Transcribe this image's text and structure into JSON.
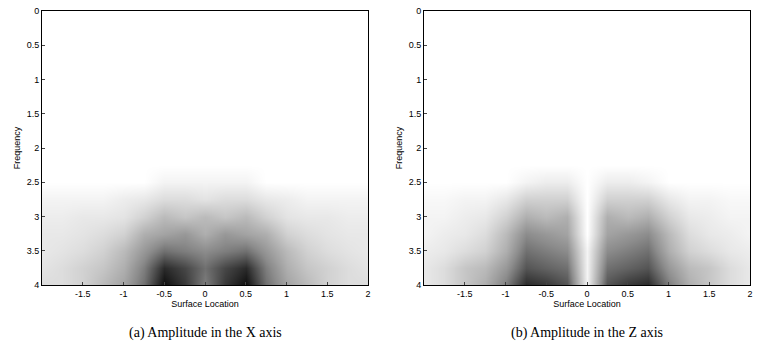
{
  "chart_data": [
    {
      "type": "heatmap",
      "title": "(a) Amplitude in the X axis",
      "x_label": "Surface Location",
      "y_label": "Frequency",
      "x": [
        -2,
        -1.75,
        -1.5,
        -1.25,
        -1,
        -0.75,
        -0.5,
        -0.25,
        0,
        0.25,
        0.5,
        0.75,
        1,
        1.25,
        1.5,
        1.75,
        2
      ],
      "y": [
        0,
        0.25,
        0.5,
        0.75,
        1,
        1.25,
        1.5,
        1.75,
        2,
        2.25,
        2.5,
        2.75,
        3,
        3.25,
        3.5,
        3.75,
        4
      ],
      "z": [
        [
          0,
          0,
          0,
          0,
          0,
          0,
          0,
          0,
          0,
          0,
          0,
          0,
          0,
          0,
          0,
          0,
          0
        ],
        [
          0,
          0,
          0,
          0,
          0,
          0,
          0,
          0,
          0,
          0,
          0,
          0,
          0,
          0,
          0,
          0,
          0
        ],
        [
          0,
          0,
          0,
          0,
          0,
          0,
          0,
          0,
          0,
          0,
          0,
          0,
          0,
          0,
          0,
          0,
          0
        ],
        [
          0,
          0,
          0,
          0,
          0,
          0,
          0,
          0,
          0,
          0,
          0,
          0,
          0,
          0,
          0,
          0,
          0
        ],
        [
          0,
          0,
          0,
          0,
          0,
          0,
          0,
          0,
          0,
          0,
          0,
          0,
          0,
          0,
          0,
          0,
          0
        ],
        [
          0,
          0,
          0,
          0,
          0,
          0,
          0,
          0,
          0,
          0,
          0,
          0,
          0,
          0,
          0,
          0,
          0
        ],
        [
          0,
          0,
          0,
          0,
          0,
          0,
          0,
          0,
          0,
          0,
          0,
          0,
          0,
          0,
          0,
          0,
          0
        ],
        [
          0,
          0,
          0,
          0,
          0,
          0,
          0,
          0,
          0,
          0,
          0,
          0,
          0,
          0,
          0,
          0,
          0
        ],
        [
          0,
          0,
          0,
          0,
          0,
          0,
          0,
          0,
          0,
          0,
          0,
          0,
          0,
          0,
          0,
          0,
          0
        ],
        [
          0,
          0,
          0,
          0,
          0,
          0,
          0,
          0,
          0,
          0,
          0,
          0,
          0,
          0,
          0,
          0,
          0
        ],
        [
          0,
          0,
          0,
          0,
          0,
          0,
          0.05,
          0.05,
          0.05,
          0.05,
          0.05,
          0,
          0,
          0,
          0,
          0,
          0
        ],
        [
          0.05,
          0.05,
          0.05,
          0.05,
          0.08,
          0.1,
          0.15,
          0.15,
          0.12,
          0.15,
          0.15,
          0.1,
          0.08,
          0.05,
          0.05,
          0.05,
          0.05
        ],
        [
          0.08,
          0.08,
          0.1,
          0.1,
          0.12,
          0.2,
          0.3,
          0.25,
          0.3,
          0.25,
          0.3,
          0.2,
          0.12,
          0.1,
          0.1,
          0.08,
          0.08
        ],
        [
          0.1,
          0.1,
          0.12,
          0.15,
          0.2,
          0.35,
          0.4,
          0.45,
          0.35,
          0.45,
          0.4,
          0.35,
          0.2,
          0.15,
          0.12,
          0.1,
          0.1
        ],
        [
          0.1,
          0.12,
          0.15,
          0.2,
          0.3,
          0.45,
          0.6,
          0.55,
          0.5,
          0.55,
          0.6,
          0.45,
          0.3,
          0.2,
          0.15,
          0.12,
          0.1
        ],
        [
          0.12,
          0.15,
          0.2,
          0.25,
          0.35,
          0.55,
          0.85,
          0.75,
          0.6,
          0.75,
          0.85,
          0.55,
          0.35,
          0.25,
          0.2,
          0.15,
          0.12
        ],
        [
          0.15,
          0.15,
          0.2,
          0.3,
          0.4,
          0.6,
          0.95,
          0.8,
          0.55,
          0.8,
          0.95,
          0.6,
          0.4,
          0.3,
          0.2,
          0.15,
          0.15
        ]
      ],
      "zlim": [
        0,
        1
      ],
      "xlim": [
        -2,
        2
      ],
      "ylim": [
        4,
        0
      ],
      "xticks": [
        -1.5,
        -1,
        -0.5,
        0,
        0.5,
        1,
        1.5,
        2
      ],
      "yticks": [
        0,
        0.5,
        1,
        1.5,
        2,
        2.5,
        3,
        3.5,
        4
      ]
    },
    {
      "type": "heatmap",
      "title": "(b) Amplitude in the Z axis",
      "x_label": "Surface Location",
      "y_label": "Frequency",
      "x": [
        -2,
        -1.75,
        -1.5,
        -1.25,
        -1,
        -0.75,
        -0.5,
        -0.25,
        0,
        0.25,
        0.5,
        0.75,
        1,
        1.25,
        1.5,
        1.75,
        2
      ],
      "y": [
        0,
        0.25,
        0.5,
        0.75,
        1,
        1.25,
        1.5,
        1.75,
        2,
        2.25,
        2.5,
        2.75,
        3,
        3.25,
        3.5,
        3.75,
        4
      ],
      "z": [
        [
          0,
          0,
          0,
          0,
          0,
          0,
          0,
          0,
          0,
          0,
          0,
          0,
          0,
          0,
          0,
          0,
          0
        ],
        [
          0,
          0,
          0,
          0,
          0,
          0,
          0,
          0,
          0,
          0,
          0,
          0,
          0,
          0,
          0,
          0,
          0
        ],
        [
          0,
          0,
          0,
          0,
          0,
          0,
          0,
          0,
          0,
          0,
          0,
          0,
          0,
          0,
          0,
          0,
          0
        ],
        [
          0,
          0,
          0,
          0,
          0,
          0,
          0,
          0,
          0,
          0,
          0,
          0,
          0,
          0,
          0,
          0,
          0
        ],
        [
          0,
          0,
          0,
          0,
          0,
          0,
          0,
          0,
          0,
          0,
          0,
          0,
          0,
          0,
          0,
          0,
          0
        ],
        [
          0,
          0,
          0,
          0,
          0,
          0,
          0,
          0,
          0,
          0,
          0,
          0,
          0,
          0,
          0,
          0,
          0
        ],
        [
          0,
          0,
          0,
          0,
          0,
          0,
          0,
          0,
          0,
          0,
          0,
          0,
          0,
          0,
          0,
          0,
          0
        ],
        [
          0,
          0,
          0,
          0,
          0,
          0,
          0,
          0,
          0,
          0,
          0,
          0,
          0,
          0,
          0,
          0,
          0
        ],
        [
          0,
          0,
          0,
          0,
          0,
          0,
          0,
          0,
          0,
          0,
          0,
          0,
          0,
          0,
          0,
          0,
          0
        ],
        [
          0,
          0,
          0,
          0,
          0,
          0,
          0,
          0,
          0,
          0,
          0,
          0,
          0,
          0,
          0,
          0,
          0
        ],
        [
          0,
          0,
          0,
          0,
          0,
          0.05,
          0.08,
          0.08,
          0,
          0.08,
          0.08,
          0.05,
          0,
          0,
          0,
          0,
          0
        ],
        [
          0.03,
          0.03,
          0.05,
          0.05,
          0.1,
          0.2,
          0.2,
          0.2,
          0,
          0.2,
          0.2,
          0.2,
          0.1,
          0.05,
          0.05,
          0.03,
          0.03
        ],
        [
          0.05,
          0.05,
          0.08,
          0.1,
          0.2,
          0.35,
          0.3,
          0.35,
          0,
          0.35,
          0.3,
          0.35,
          0.2,
          0.1,
          0.08,
          0.05,
          0.05
        ],
        [
          0.05,
          0.08,
          0.1,
          0.15,
          0.3,
          0.5,
          0.45,
          0.4,
          0,
          0.4,
          0.45,
          0.5,
          0.3,
          0.15,
          0.1,
          0.08,
          0.05
        ],
        [
          0.08,
          0.1,
          0.15,
          0.2,
          0.35,
          0.6,
          0.55,
          0.5,
          0.05,
          0.5,
          0.55,
          0.6,
          0.35,
          0.2,
          0.15,
          0.1,
          0.08
        ],
        [
          0.1,
          0.15,
          0.25,
          0.3,
          0.45,
          0.7,
          0.65,
          0.6,
          0.05,
          0.6,
          0.65,
          0.7,
          0.45,
          0.3,
          0.25,
          0.15,
          0.1
        ],
        [
          0.1,
          0.15,
          0.25,
          0.35,
          0.55,
          0.85,
          0.8,
          0.7,
          0.05,
          0.7,
          0.8,
          0.85,
          0.55,
          0.35,
          0.25,
          0.15,
          0.1
        ]
      ],
      "zlim": [
        0,
        1
      ],
      "xlim": [
        -2,
        2
      ],
      "ylim": [
        4,
        0
      ],
      "xticks": [
        -1.5,
        -1,
        -0.5,
        0,
        0.5,
        1,
        1.5,
        2
      ],
      "yticks": [
        0,
        0.5,
        1,
        1.5,
        2,
        2.5,
        3,
        3.5,
        4
      ]
    }
  ]
}
